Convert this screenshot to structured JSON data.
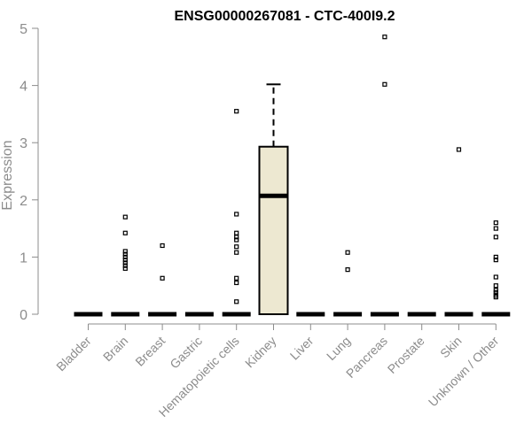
{
  "chart_data": {
    "type": "boxplot",
    "title": "ENSG00000267081 - CTC-400I9.2",
    "xlabel": "",
    "ylabel": "Expression",
    "ylim": [
      0,
      5
    ],
    "yticks": [
      "0",
      "1",
      "2",
      "3",
      "4",
      "5"
    ],
    "grid": false,
    "box_fill": "#ede8d1",
    "categories": [
      "Bladder",
      "Brain",
      "Breast",
      "Gastric",
      "Hematopoietic cells",
      "Kidney",
      "Liver",
      "Lung",
      "Pancreas",
      "Prostate",
      "Skin",
      "Unknown / Other"
    ],
    "boxes": [
      {
        "category": "Bladder",
        "q1": 0,
        "median": 0,
        "q3": 0,
        "whisker_low": 0,
        "whisker_high": 0,
        "outliers": []
      },
      {
        "category": "Brain",
        "q1": 0,
        "median": 0,
        "q3": 0,
        "whisker_low": 0,
        "whisker_high": 0,
        "outliers": [
          1.7,
          1.42,
          1.1,
          1.05,
          1.0,
          0.95,
          0.9,
          0.85,
          0.8
        ]
      },
      {
        "category": "Breast",
        "q1": 0,
        "median": 0,
        "q3": 0,
        "whisker_low": 0,
        "whisker_high": 0,
        "outliers": [
          1.2,
          0.63
        ]
      },
      {
        "category": "Gastric",
        "q1": 0,
        "median": 0,
        "q3": 0,
        "whisker_low": 0,
        "whisker_high": 0,
        "outliers": []
      },
      {
        "category": "Hematopoietic cells",
        "q1": 0,
        "median": 0,
        "q3": 0,
        "whisker_low": 0,
        "whisker_high": 0,
        "outliers": [
          3.55,
          1.75,
          1.42,
          1.35,
          1.3,
          1.18,
          1.08,
          0.63,
          0.55,
          0.22
        ]
      },
      {
        "category": "Kidney",
        "q1": 0,
        "median": 2.07,
        "q3": 2.93,
        "whisker_low": 0,
        "whisker_high": 4.02,
        "outliers": []
      },
      {
        "category": "Liver",
        "q1": 0,
        "median": 0,
        "q3": 0,
        "whisker_low": 0,
        "whisker_high": 0,
        "outliers": []
      },
      {
        "category": "Lung",
        "q1": 0,
        "median": 0,
        "q3": 0,
        "whisker_low": 0,
        "whisker_high": 0,
        "outliers": [
          1.08,
          0.78
        ]
      },
      {
        "category": "Pancreas",
        "q1": 0,
        "median": 0,
        "q3": 0,
        "whisker_low": 0,
        "whisker_high": 0,
        "outliers": [
          4.85,
          4.02
        ]
      },
      {
        "category": "Prostate",
        "q1": 0,
        "median": 0,
        "q3": 0,
        "whisker_low": 0,
        "whisker_high": 0,
        "outliers": []
      },
      {
        "category": "Skin",
        "q1": 0,
        "median": 0,
        "q3": 0,
        "whisker_low": 0,
        "whisker_high": 0,
        "outliers": [
          2.88
        ]
      },
      {
        "category": "Unknown / Other",
        "q1": 0,
        "median": 0,
        "q3": 0,
        "whisker_low": 0,
        "whisker_high": 0,
        "outliers": [
          1.6,
          1.5,
          1.35,
          1.0,
          0.95,
          0.65,
          0.5,
          0.42,
          0.38,
          0.33,
          0.3
        ]
      }
    ]
  }
}
